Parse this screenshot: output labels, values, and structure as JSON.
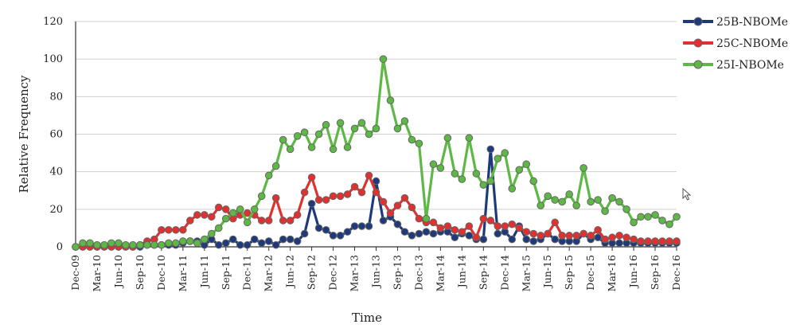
{
  "chart_data": {
    "type": "line",
    "title": "",
    "xlabel": "Time",
    "ylabel": "Relative Frequency",
    "ylim": [
      0,
      120
    ],
    "yticks": [
      0,
      20,
      40,
      60,
      80,
      100,
      120
    ],
    "grid": "horizontal",
    "legend": "top-right",
    "x_tick_labels": [
      "Dec-09",
      "Mar-10",
      "Jun-10",
      "Sep-10",
      "Dec-10",
      "Mar-11",
      "Jun-11",
      "Sep-11",
      "Dec-11",
      "Mar-12",
      "Jun-12",
      "Sep-12",
      "Dec-12",
      "Mar-13",
      "Jun-13",
      "Sep-13",
      "Dec-13",
      "Mar-14",
      "Jun-14",
      "Sep-14",
      "Dec-14",
      "Mar-15",
      "Jun-15",
      "Sep-15",
      "Dec-15",
      "Mar-16",
      "Jun-16",
      "Sep-16",
      "Dec-16"
    ],
    "series": [
      {
        "name": "25B-NBOMe",
        "color": "#1f3a7a",
        "values": [
          0,
          0,
          0,
          0,
          0,
          0,
          0,
          0,
          0,
          0,
          1,
          1,
          1,
          1,
          1,
          2,
          3,
          3,
          1,
          4,
          1,
          2,
          4,
          1,
          1,
          4,
          2,
          3,
          1,
          4,
          4,
          3,
          7,
          23,
          10,
          9,
          6,
          6,
          8,
          11,
          11,
          11,
          35,
          14,
          16,
          12,
          8,
          6,
          7,
          8,
          7,
          8,
          8,
          5,
          7,
          6,
          4,
          4,
          52,
          7,
          8,
          4,
          11,
          4,
          3,
          4,
          7,
          4,
          3,
          3,
          3,
          7,
          4,
          5,
          2,
          2,
          2,
          2,
          2,
          2,
          2,
          2,
          2,
          2,
          2
        ]
      },
      {
        "name": "25C-NBOMe",
        "color": "#e03030",
        "values": [
          0,
          0,
          0,
          0,
          0,
          0,
          0,
          0,
          0,
          1,
          3,
          4,
          9,
          9,
          9,
          9,
          14,
          17,
          17,
          16,
          21,
          20,
          15,
          17,
          18,
          17,
          14,
          14,
          26,
          14,
          14,
          17,
          29,
          37,
          25,
          25,
          27,
          27,
          28,
          32,
          29,
          38,
          29,
          24,
          18,
          22,
          26,
          21,
          15,
          13,
          13,
          10,
          11,
          9,
          8,
          11,
          5,
          15,
          14,
          11,
          11,
          12,
          10,
          8,
          7,
          6,
          7,
          13,
          6,
          6,
          6,
          7,
          6,
          9,
          4,
          5,
          6,
          5,
          4,
          3,
          3,
          3,
          3,
          3,
          3
        ]
      },
      {
        "name": "25I-NBOMe",
        "color": "#5db845",
        "values": [
          0,
          2,
          2,
          1,
          1,
          2,
          2,
          1,
          1,
          1,
          1,
          1,
          1,
          2,
          2,
          3,
          3,
          2,
          4,
          7,
          10,
          15,
          18,
          20,
          13,
          20,
          27,
          38,
          43,
          57,
          52,
          59,
          61,
          53,
          60,
          65,
          52,
          66,
          53,
          63,
          66,
          60,
          63,
          100,
          78,
          63,
          67,
          57,
          55,
          15,
          44,
          42,
          58,
          39,
          36,
          58,
          39,
          33,
          35,
          47,
          50,
          31,
          41,
          44,
          35,
          22,
          27,
          25,
          24,
          28,
          22,
          42,
          24,
          25,
          19,
          26,
          24,
          20,
          13,
          16,
          16,
          17,
          14,
          12,
          16
        ]
      }
    ]
  }
}
